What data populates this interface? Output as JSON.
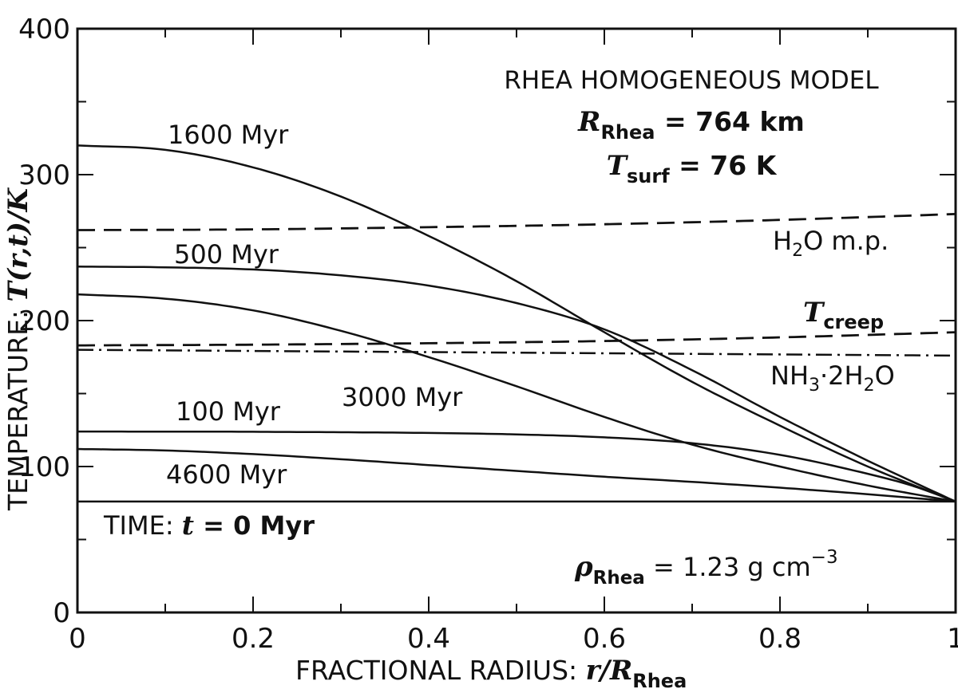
{
  "chart_data": {
    "type": "line",
    "title": "RHEA HOMOGENEOUS MODEL",
    "params": {
      "radius": {
        "symbol": "R",
        "sub": "Rhea",
        "text": " = 764 km"
      },
      "tsurf": {
        "symbol": "T",
        "sub": "surf",
        "text": " = 76 K"
      },
      "density": {
        "symbol": "ρ",
        "sub": "Rhea",
        "text": " = 1.23 g cm",
        "sup": "−3"
      }
    },
    "time_label": {
      "prefix": "TIME: ",
      "symbol": "t",
      "text": " = 0 Myr"
    },
    "xlabel": {
      "text": "FRACTIONAL RADIUS:  ",
      "symbol": "r/R",
      "sub": "Rhea"
    },
    "ylabel": {
      "text": "TEMPERATURE:  ",
      "symbol": "T(r,t)/K"
    },
    "xlim": [
      0,
      1
    ],
    "ylim": [
      0,
      400
    ],
    "xticks": [
      {
        "value": 0,
        "label": "0"
      },
      {
        "value": 0.2,
        "label": "0.2"
      },
      {
        "value": 0.4,
        "label": "0.4"
      },
      {
        "value": 0.6,
        "label": "0.6"
      },
      {
        "value": 0.8,
        "label": "0.8"
      },
      {
        "value": 1,
        "label": "1"
      }
    ],
    "yticks": [
      {
        "value": 0,
        "label": "0"
      },
      {
        "value": 100,
        "label": "100"
      },
      {
        "value": 200,
        "label": "200"
      },
      {
        "value": 300,
        "label": "300"
      },
      {
        "value": 400,
        "label": "400"
      }
    ],
    "series": [
      {
        "name": "TIME: t = 0 Myr",
        "style": "solid",
        "x": [
          0,
          1
        ],
        "y": [
          76,
          76
        ]
      },
      {
        "name": "100 Myr",
        "style": "solid",
        "x": [
          0,
          0.2,
          0.4,
          0.5,
          0.6,
          0.7,
          0.8,
          0.9,
          0.95,
          1.0
        ],
        "y": [
          124,
          123.8,
          123,
          122,
          120,
          116,
          108,
          95,
          87,
          76
        ]
      },
      {
        "name": "500 Myr",
        "style": "solid",
        "x": [
          0,
          0.1,
          0.2,
          0.3,
          0.4,
          0.5,
          0.6,
          0.7,
          0.8,
          0.9,
          1.0
        ],
        "y": [
          237,
          236.5,
          235,
          231,
          224,
          212,
          194,
          166,
          134,
          104,
          76
        ]
      },
      {
        "name": "1600 Myr",
        "style": "solid",
        "x": [
          0,
          0.1,
          0.2,
          0.3,
          0.4,
          0.5,
          0.6,
          0.7,
          0.8,
          0.9,
          1.0
        ],
        "y": [
          320,
          317,
          305,
          285,
          258,
          227,
          192,
          158,
          128,
          100,
          76
        ]
      },
      {
        "name": "3000 Myr",
        "style": "solid",
        "x": [
          0,
          0.1,
          0.2,
          0.3,
          0.4,
          0.5,
          0.6,
          0.7,
          0.8,
          0.9,
          1.0
        ],
        "y": [
          218,
          215,
          207,
          193,
          175,
          155,
          134,
          115,
          100,
          87,
          76
        ]
      },
      {
        "name": "4600 Myr",
        "style": "solid",
        "x": [
          0,
          0.1,
          0.2,
          0.3,
          0.4,
          0.5,
          0.6,
          0.7,
          0.8,
          0.9,
          1.0
        ],
        "y": [
          112,
          111,
          108.5,
          105,
          101,
          97,
          93,
          89.5,
          85.5,
          81,
          76
        ]
      },
      {
        "name": "H2O m.p.",
        "style": "dashed",
        "x": [
          0,
          0.2,
          0.4,
          0.6,
          0.8,
          1.0
        ],
        "y": [
          262,
          262.5,
          264,
          266,
          269,
          273
        ]
      },
      {
        "name": "T creep",
        "style": "dashed",
        "x": [
          0,
          0.2,
          0.4,
          0.6,
          0.8,
          1.0
        ],
        "y": [
          183,
          183.5,
          184.5,
          186,
          188.5,
          192
        ]
      },
      {
        "name": "NH3·2H2O",
        "style": "dashdot",
        "x": [
          0,
          1
        ],
        "y": [
          180,
          176
        ]
      }
    ],
    "labels": {
      "l1600": "1600 Myr",
      "l500": "500 Myr",
      "l100": "100 Myr",
      "l3000": "3000 Myr",
      "l4600": "4600 Myr",
      "h2o_main": "H",
      "h2o_sub": "2",
      "h2o_rest": "O m.p.",
      "creep_symbol": "T",
      "creep_sub": "creep",
      "nh3_main": "NH",
      "nh3_sub": "3",
      "nh3_mid": "·2H",
      "nh3_sub2": "2",
      "nh3_rest": "O"
    },
    "grid": false,
    "line_color": "#111111"
  }
}
